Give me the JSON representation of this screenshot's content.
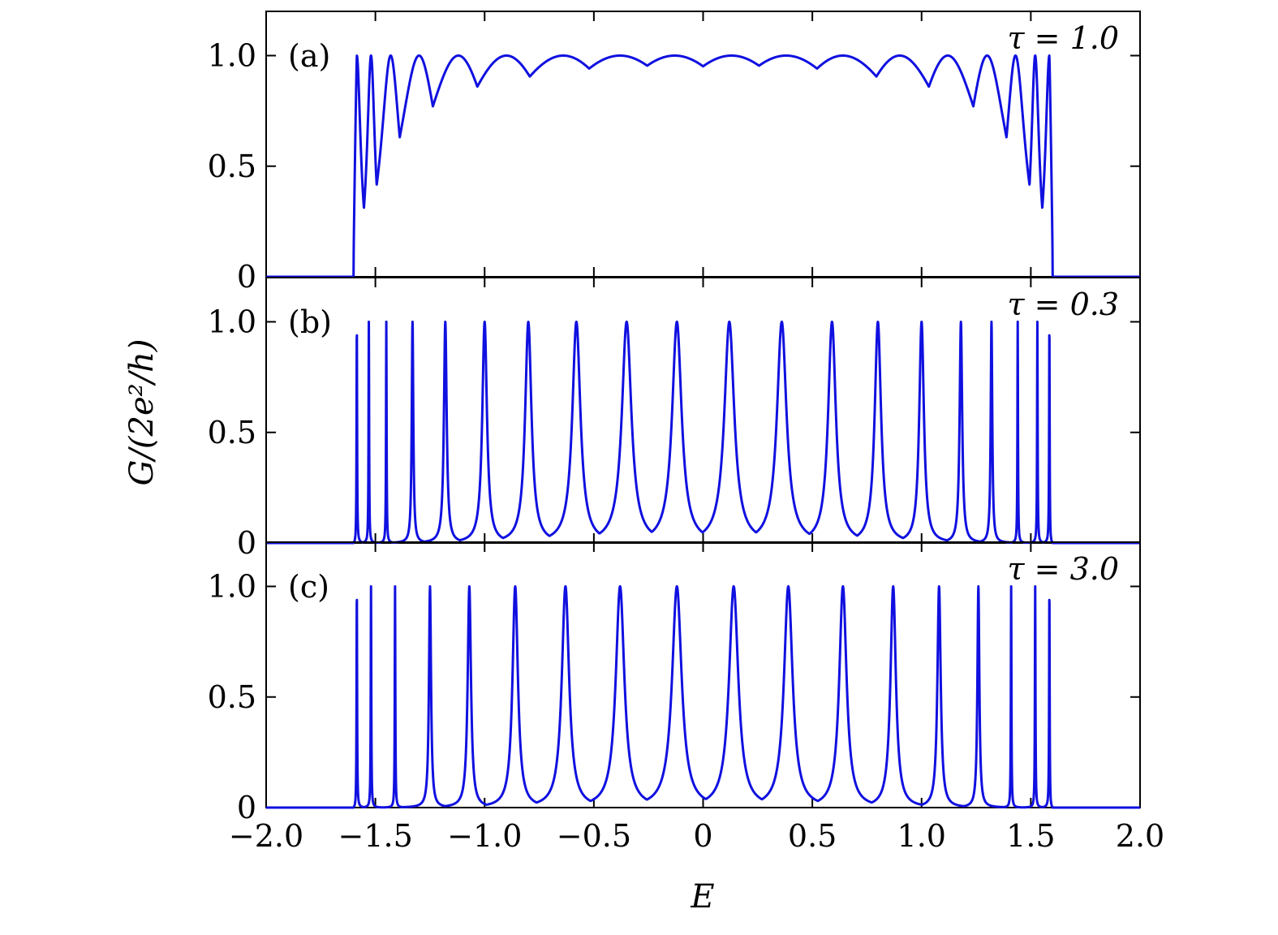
{
  "figure": {
    "ylabel": "G/(2e²/h)",
    "xlabel": "E"
  },
  "chart_data": {
    "type": "line",
    "shared_x_axis": {
      "label": "E",
      "xlim": [
        -2.0,
        2.0
      ],
      "ticks": [
        -2.0,
        -1.5,
        -1.0,
        -0.5,
        0,
        0.5,
        1.0,
        1.5,
        2.0
      ],
      "tick_labels": [
        "−2.0",
        "−1.5",
        "−1.0",
        "−0.5",
        "0",
        "0.5",
        "1.0",
        "1.5",
        "2.0"
      ]
    },
    "shared_y_axis": {
      "label": "G/(2e²/h)",
      "ylim": [
        0,
        1.2
      ],
      "ticks": [
        0,
        0.5,
        1.0
      ],
      "tick_labels": [
        "0",
        "0.5",
        "1.0"
      ]
    },
    "line_color": "#1010e0",
    "panels": [
      {
        "label": "(a)",
        "annotation": "τ = 1.0",
        "tau": 1.0,
        "band_edge": 1.6,
        "resonances": [
          -1.585,
          -1.52,
          -1.43,
          -1.3,
          -1.12,
          -0.9,
          -0.64,
          -0.38,
          -0.13,
          0.13,
          0.38,
          0.64,
          0.9,
          1.12,
          1.3,
          1.43,
          1.52,
          1.585
        ],
        "minima_between_resonances": [
          0.31,
          0.59,
          0.76,
          0.85,
          0.9,
          0.93,
          0.95,
          0.955,
          0.955,
          0.955,
          0.95,
          0.93,
          0.9,
          0.85,
          0.76,
          0.59,
          0.31
        ]
      },
      {
        "label": "(b)",
        "annotation": "τ = 0.3",
        "tau": 0.3,
        "band_edge": 1.6,
        "resonances": [
          -1.585,
          -1.53,
          -1.45,
          -1.33,
          -1.18,
          -1.0,
          -0.8,
          -0.58,
          -0.35,
          -0.12,
          0.12,
          0.36,
          0.59,
          0.8,
          1.0,
          1.18,
          1.32,
          1.44,
          1.53,
          1.585
        ],
        "minima_between_resonances": [
          0.0,
          0.0,
          0.005,
          0.01,
          0.02,
          0.03,
          0.04,
          0.05,
          0.05,
          0.05,
          0.05,
          0.05,
          0.04,
          0.03,
          0.02,
          0.01,
          0.005,
          0.0,
          0.0
        ]
      },
      {
        "label": "(c)",
        "annotation": "τ = 3.0",
        "tau": 3.0,
        "band_edge": 1.6,
        "resonances": [
          -1.585,
          -1.52,
          -1.41,
          -1.25,
          -1.07,
          -0.86,
          -0.63,
          -0.38,
          -0.12,
          0.14,
          0.39,
          0.64,
          0.87,
          1.08,
          1.26,
          1.41,
          1.52,
          1.585
        ],
        "minima_between_resonances": [
          0.0,
          0.0,
          0.005,
          0.01,
          0.02,
          0.03,
          0.035,
          0.04,
          0.04,
          0.04,
          0.035,
          0.03,
          0.02,
          0.01,
          0.005,
          0.0,
          0.0
        ]
      }
    ]
  }
}
